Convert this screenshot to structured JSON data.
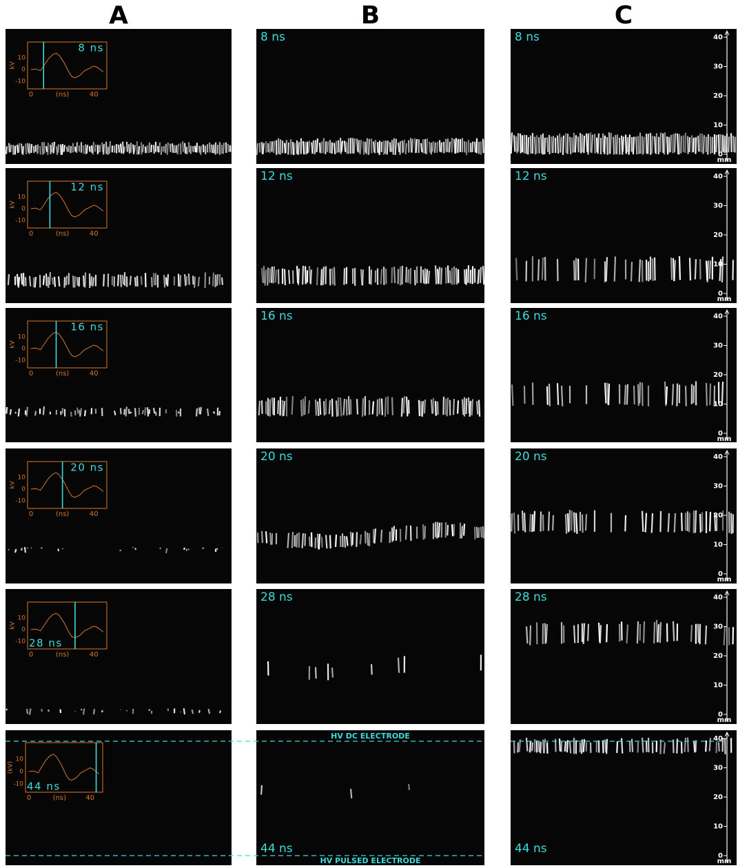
{
  "columns": [
    "A",
    "B",
    "C"
  ],
  "rows": [
    {
      "time": "8 ns",
      "inset_y_label": "kV"
    },
    {
      "time": "12 ns",
      "inset_y_label": "kV"
    },
    {
      "time": "16 ns",
      "inset_y_label": "kV"
    },
    {
      "time": "20 ns",
      "inset_y_label": "kV"
    },
    {
      "time": "28 ns",
      "inset_y_label": "kV"
    },
    {
      "time": "44 ns",
      "inset_y_label": "(kV)"
    }
  ],
  "inset": {
    "y_ticks": [
      "10",
      "0",
      "-10"
    ],
    "x_ticks": [
      "0",
      "40"
    ],
    "x_label": "(ns)"
  },
  "scale": {
    "ticks": [
      "40",
      "30",
      "20",
      "10",
      "0"
    ],
    "unit": "mm"
  },
  "electrodes": {
    "top": "HV DC ELECTRODE",
    "bottom": "HV PULSED ELECTRODE"
  }
}
